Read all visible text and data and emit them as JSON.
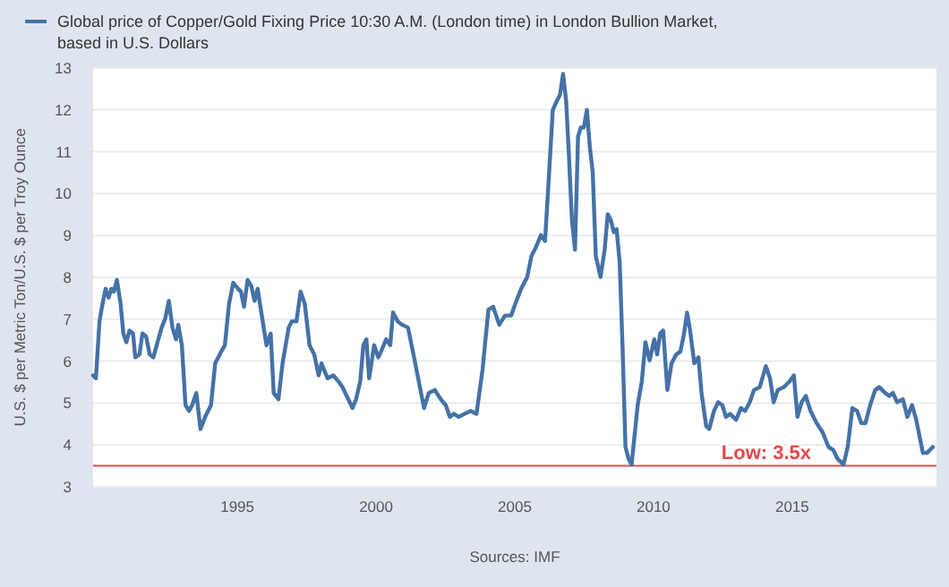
{
  "chart_data": {
    "type": "line",
    "ylabel": "U.S. $ per Metric Ton/U.S. $ per Troy Ounce",
    "annotations": [
      "Sources: IMF"
    ],
    "xlim": [
      1989.8,
      2020.2
    ],
    "xticks": [
      1995,
      2000,
      2005,
      2010,
      2015
    ],
    "ylim": [
      3,
      13
    ],
    "yticks": [
      3,
      4,
      5,
      6,
      7,
      8,
      9,
      10,
      11,
      12,
      13
    ],
    "grid": "y",
    "legend": "top",
    "line_style": "solid",
    "marker": "none",
    "ref_lines": [
      {
        "axis": "y",
        "value": 3.5,
        "label": "Low: 3.5x",
        "color": "#e8464b"
      }
    ],
    "series": [
      {
        "name": "Global price of Copper/Gold Fixing Price 10:30 A.M. (London time) in London Bullion Market, based in U.S. Dollars",
        "color": "#4572a7",
        "x": [
          1989.8,
          1989.9,
          1990.03,
          1990.14,
          1990.25,
          1990.36,
          1990.46,
          1990.55,
          1990.66,
          1990.79,
          1990.89,
          1991.0,
          1991.11,
          1991.24,
          1991.32,
          1991.47,
          1991.58,
          1991.71,
          1991.84,
          1991.97,
          1992.12,
          1992.27,
          1992.4,
          1992.53,
          1992.66,
          1992.79,
          1992.87,
          1993.0,
          1993.13,
          1993.26,
          1993.37,
          1993.52,
          1993.67,
          1993.84,
          1994.05,
          1994.2,
          1994.42,
          1994.55,
          1994.7,
          1994.85,
          1995.02,
          1995.13,
          1995.24,
          1995.37,
          1995.5,
          1995.62,
          1995.73,
          1995.88,
          1996.05,
          1996.2,
          1996.31,
          1996.48,
          1996.63,
          1996.85,
          1996.96,
          1997.13,
          1997.28,
          1997.43,
          1997.6,
          1997.77,
          1997.93,
          1998.03,
          1998.25,
          1998.46,
          1998.64,
          1998.79,
          1999.0,
          1999.15,
          1999.28,
          1999.43,
          1999.54,
          1999.65,
          1999.75,
          1999.93,
          2000.08,
          2000.18,
          2000.36,
          2000.51,
          2000.61,
          2000.78,
          2000.94,
          2001.15,
          2001.37,
          2001.58,
          2001.73,
          2001.9,
          2002.12,
          2002.33,
          2002.51,
          2002.66,
          2002.81,
          2002.98,
          2003.19,
          2003.41,
          2003.62,
          2003.84,
          2004.05,
          2004.22,
          2004.44,
          2004.65,
          2004.87,
          2005.02,
          2005.23,
          2005.45,
          2005.6,
          2005.77,
          2005.94,
          2006.09,
          2006.2,
          2006.37,
          2006.52,
          2006.63,
          2006.74,
          2006.85,
          2006.95,
          2007.06,
          2007.17,
          2007.28,
          2007.38,
          2007.49,
          2007.6,
          2007.71,
          2007.81,
          2007.92,
          2008.09,
          2008.24,
          2008.35,
          2008.46,
          2008.57,
          2008.67,
          2008.78,
          2008.89,
          2008.99,
          2009.1,
          2009.21,
          2009.32,
          2009.43,
          2009.58,
          2009.71,
          2009.86,
          2010.03,
          2010.13,
          2010.24,
          2010.35,
          2010.5,
          2010.65,
          2010.82,
          2010.97,
          2011.1,
          2011.21,
          2011.32,
          2011.47,
          2011.62,
          2011.73,
          2011.9,
          2012.01,
          2012.18,
          2012.33,
          2012.48,
          2012.61,
          2012.76,
          2012.98,
          2013.15,
          2013.3,
          2013.47,
          2013.62,
          2013.83,
          2014.05,
          2014.2,
          2014.33,
          2014.48,
          2014.7,
          2014.91,
          2015.06,
          2015.19,
          2015.34,
          2015.49,
          2015.66,
          2015.88,
          2016.09,
          2016.31,
          2016.48,
          2016.63,
          2016.85,
          2017.0,
          2017.17,
          2017.34,
          2017.49,
          2017.64,
          2017.81,
          2017.99,
          2018.14,
          2018.35,
          2018.5,
          2018.63,
          2018.78,
          2018.99,
          2019.15,
          2019.32,
          2019.47,
          2019.71,
          2019.86,
          2020.07
        ],
        "values": [
          5.66,
          5.59,
          6.95,
          7.37,
          7.73,
          7.52,
          7.73,
          7.66,
          7.94,
          7.37,
          6.66,
          6.45,
          6.73,
          6.66,
          6.09,
          6.16,
          6.66,
          6.59,
          6.16,
          6.09,
          6.45,
          6.8,
          7.02,
          7.44,
          6.8,
          6.52,
          6.87,
          6.38,
          4.95,
          4.81,
          4.95,
          5.24,
          4.38,
          4.67,
          4.95,
          5.95,
          6.23,
          6.38,
          7.37,
          7.87,
          7.73,
          7.66,
          7.3,
          7.94,
          7.8,
          7.44,
          7.73,
          7.09,
          6.38,
          6.66,
          5.24,
          5.09,
          5.95,
          6.8,
          6.95,
          6.95,
          7.66,
          7.37,
          6.38,
          6.16,
          5.66,
          5.95,
          5.59,
          5.66,
          5.52,
          5.38,
          5.09,
          4.88,
          5.09,
          5.52,
          6.38,
          6.52,
          5.59,
          6.38,
          6.09,
          6.23,
          6.52,
          6.38,
          7.16,
          6.95,
          6.87,
          6.8,
          6.09,
          5.38,
          4.88,
          5.24,
          5.31,
          5.09,
          4.95,
          4.67,
          4.74,
          4.67,
          4.74,
          4.81,
          4.74,
          5.81,
          7.23,
          7.3,
          6.87,
          7.09,
          7.09,
          7.37,
          7.73,
          8.01,
          8.51,
          8.73,
          9.01,
          8.87,
          10.08,
          12.0,
          12.22,
          12.36,
          12.86,
          12.22,
          10.93,
          9.37,
          8.66,
          11.36,
          11.58,
          11.58,
          12.0,
          11.08,
          10.51,
          8.51,
          8.01,
          8.66,
          9.51,
          9.37,
          9.08,
          9.15,
          8.37,
          6.23,
          3.95,
          3.67,
          3.53,
          4.24,
          4.95,
          5.52,
          6.45,
          6.02,
          6.52,
          6.16,
          6.66,
          6.73,
          5.31,
          5.95,
          6.16,
          6.23,
          6.66,
          7.16,
          6.73,
          5.95,
          6.09,
          5.24,
          4.45,
          4.38,
          4.81,
          5.02,
          4.95,
          4.67,
          4.74,
          4.6,
          4.88,
          4.81,
          5.02,
          5.31,
          5.38,
          5.88,
          5.59,
          5.02,
          5.31,
          5.38,
          5.52,
          5.66,
          4.67,
          5.02,
          5.17,
          4.81,
          4.52,
          4.31,
          3.95,
          3.88,
          3.67,
          3.53,
          3.95,
          4.88,
          4.81,
          4.52,
          4.52,
          4.95,
          5.31,
          5.38,
          5.24,
          5.17,
          5.24,
          5.02,
          5.09,
          4.67,
          4.95,
          4.6,
          3.81,
          3.81,
          3.95
        ]
      }
    ]
  }
}
